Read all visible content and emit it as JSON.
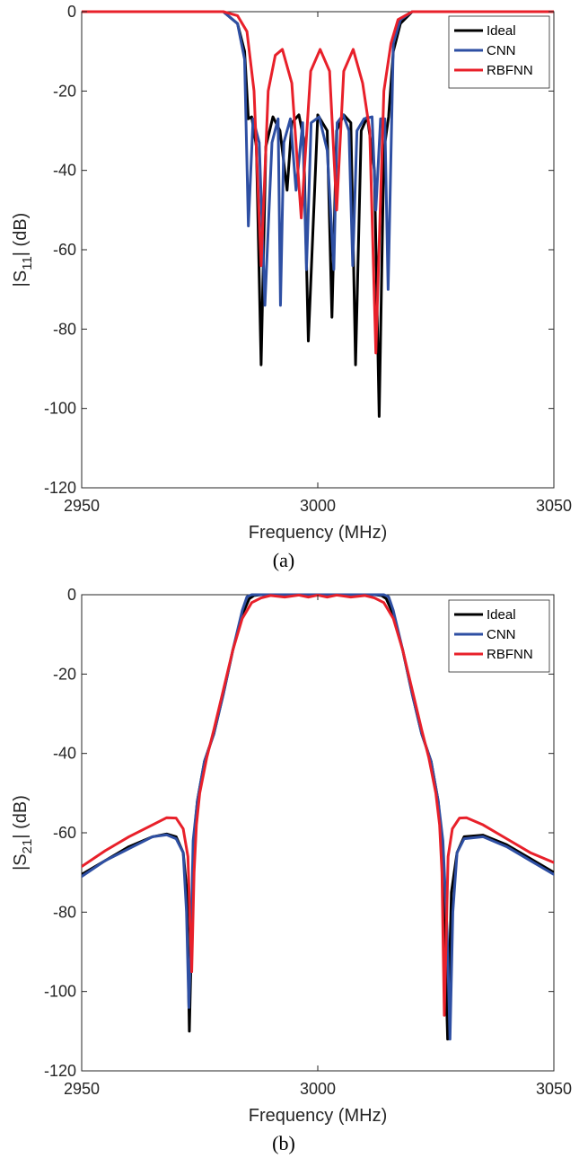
{
  "chart_data": [
    {
      "type": "line",
      "caption": "(a)",
      "xlabel": "Frequency (MHz)",
      "ylabel_main": "|S",
      "ylabel_sub": "11",
      "ylabel_tail": "| (dB)",
      "xlim": [
        2950,
        3050
      ],
      "ylim": [
        -120,
        0
      ],
      "xticks": [
        2950,
        3000,
        3050
      ],
      "yticks": [
        0,
        -20,
        -40,
        -60,
        -80,
        -100,
        -120
      ],
      "grid": false,
      "legend_position": "top-right",
      "series": [
        {
          "name": "Ideal",
          "color": "#000000",
          "x": [
            2950,
            2980,
            2983,
            2984.5,
            2985.3,
            2986,
            2987,
            2988,
            2989,
            2990.5,
            2992,
            2993.5,
            2994.5,
            2996,
            2997,
            2998,
            3000,
            3002,
            3003,
            3004,
            3005.5,
            3007,
            3008,
            3009.2,
            3010.5,
            3012,
            3013,
            3014,
            3015,
            3016,
            3017.5,
            3020,
            3050
          ],
          "y": [
            0,
            0,
            -3,
            -10,
            -27,
            -26.5,
            -34,
            -89,
            -34,
            -26.5,
            -30,
            -45,
            -28,
            -26,
            -32,
            -83,
            -26,
            -30,
            -77,
            -30,
            -26,
            -28,
            -89,
            -30,
            -26.5,
            -40,
            -102,
            -35,
            -26.5,
            -10,
            -3,
            0,
            0
          ]
        },
        {
          "name": "CNN",
          "color": "#2e4fa3",
          "x": [
            2950,
            2980,
            2983,
            2984.5,
            2985.3,
            2986.3,
            2987.6,
            2988.8,
            2990.3,
            2991.6,
            2992.1,
            2992.8,
            2994.2,
            2995.4,
            2996.8,
            2997.6,
            2998.6,
            3000.3,
            3002,
            3003.4,
            3004.1,
            3005.4,
            3006.6,
            3007.4,
            3008.3,
            3009.8,
            3011.5,
            3012.3,
            3013.3,
            3014.2,
            3014.9,
            3016,
            3017.5,
            3020,
            3050
          ],
          "y": [
            0,
            0,
            -3,
            -12,
            -54,
            -27,
            -33,
            -74,
            -33,
            -27,
            -74,
            -33,
            -27,
            -45,
            -28,
            -65,
            -28,
            -26.5,
            -35,
            -65,
            -28,
            -26,
            -30,
            -64,
            -30,
            -27,
            -26.5,
            -50,
            -27,
            -27,
            -70,
            -8,
            -2,
            0,
            0
          ]
        },
        {
          "name": "RBFNN",
          "color": "#e8202a",
          "x": [
            2950,
            2980,
            2983,
            2985,
            2986.5,
            2988,
            2989.5,
            2991,
            2992.5,
            2994.5,
            2996.5,
            2998.5,
            3000.5,
            3002.5,
            3004,
            3005.5,
            3007.5,
            3009.5,
            3011,
            3012.3,
            3014,
            3015.5,
            3017,
            3020,
            3050
          ],
          "y": [
            0,
            0,
            -1,
            -5,
            -20,
            -64,
            -20,
            -11,
            -9.5,
            -18,
            -52,
            -15,
            -9.5,
            -15,
            -50,
            -15,
            -9.5,
            -18,
            -30,
            -86,
            -20,
            -8,
            -2,
            0,
            0
          ]
        }
      ]
    },
    {
      "type": "line",
      "caption": "(b)",
      "xlabel": "Frequency (MHz)",
      "ylabel_main": "|S",
      "ylabel_sub": "21",
      "ylabel_tail": "| (dB)",
      "xlim": [
        2950,
        3050
      ],
      "ylim": [
        -120,
        0
      ],
      "xticks": [
        2950,
        3000,
        3050
      ],
      "yticks": [
        0,
        -20,
        -40,
        -60,
        -80,
        -100,
        -120
      ],
      "grid": false,
      "legend_position": "top-right",
      "series": [
        {
          "name": "Ideal",
          "color": "#000000",
          "x": [
            2950,
            2955,
            2960,
            2965,
            2968,
            2970,
            2971.5,
            2972.3,
            2972.8,
            2973.2,
            2973.7,
            2974.5,
            2976,
            2978,
            2980,
            2982,
            2984,
            2985.5,
            2986.5,
            2988,
            2993,
            3000,
            3007,
            3012,
            3013.5,
            3014.5,
            3016,
            3018,
            3020,
            3022,
            3024,
            3025.5,
            3026.3,
            3027,
            3027.5,
            3028.3,
            3029.5,
            3031,
            3035,
            3040,
            3045,
            3050
          ],
          "y": [
            -70.5,
            -67,
            -63.5,
            -61,
            -60.3,
            -61,
            -65,
            -75,
            -110,
            -90,
            -62,
            -52,
            -42,
            -35,
            -25,
            -14,
            -5,
            -1,
            -0.2,
            0,
            0,
            0,
            0,
            0,
            -0.2,
            -1,
            -5,
            -14,
            -25,
            -35,
            -42,
            -52,
            -62,
            -90,
            -112,
            -75,
            -65,
            -61,
            -60.6,
            -63,
            -66.5,
            -70
          ]
        },
        {
          "name": "CNN",
          "color": "#2e4fa3",
          "x": [
            2950,
            2955,
            2960,
            2965,
            2968,
            2970,
            2971.5,
            2972.2,
            2972.7,
            2973.2,
            2973.6,
            2974.5,
            2976,
            2978,
            2980,
            2982,
            2984,
            2985,
            2986,
            2988,
            2993,
            3000,
            3007,
            3012,
            3014,
            3015,
            3016,
            3018,
            3020,
            3022,
            3024,
            3025.5,
            3026.5,
            3027.4,
            3028,
            3028.6,
            3029.5,
            3031,
            3035,
            3040,
            3045,
            3050
          ],
          "y": [
            -71,
            -67,
            -64,
            -61,
            -60.5,
            -61.5,
            -65,
            -80,
            -104,
            -85,
            -62,
            -52,
            -42,
            -35,
            -25,
            -14,
            -4,
            -0.5,
            0,
            0,
            0,
            0,
            0,
            0,
            0,
            -0.5,
            -4,
            -14,
            -25,
            -35,
            -42,
            -52,
            -62,
            -85,
            -112,
            -80,
            -65,
            -61.5,
            -61,
            -63.5,
            -67,
            -70.5
          ]
        },
        {
          "name": "RBFNN",
          "color": "#e8202a",
          "x": [
            2950,
            2955,
            2960,
            2965,
            2968,
            2970,
            2971.5,
            2972.5,
            2973.3,
            2973.8,
            2974.3,
            2975,
            2976.5,
            2978,
            2980,
            2982,
            2984,
            2986,
            2988,
            2990,
            2993,
            2996,
            2998,
            3000,
            3002,
            3004,
            3007,
            3010,
            3012,
            3014,
            3016,
            3018,
            3020,
            3022,
            3023.5,
            3025,
            3025.8,
            3026.3,
            3026.8,
            3027.6,
            3028.5,
            3030,
            3031.5,
            3035,
            3040,
            3045,
            3050
          ],
          "y": [
            -68.5,
            -64.5,
            -61,
            -58,
            -56.2,
            -56.3,
            -59,
            -66,
            -95,
            -70,
            -58,
            -50,
            -41,
            -34,
            -24,
            -14,
            -6,
            -2,
            -0.8,
            -0.2,
            -0.6,
            -0.1,
            -0.6,
            -0.1,
            -0.6,
            -0.1,
            -0.6,
            -0.2,
            -0.8,
            -2,
            -6,
            -14,
            -24,
            -34,
            -41,
            -50,
            -58,
            -70,
            -106,
            -66,
            -59,
            -56.3,
            -56.2,
            -58,
            -61.5,
            -65,
            -67.5
          ]
        }
      ]
    }
  ]
}
